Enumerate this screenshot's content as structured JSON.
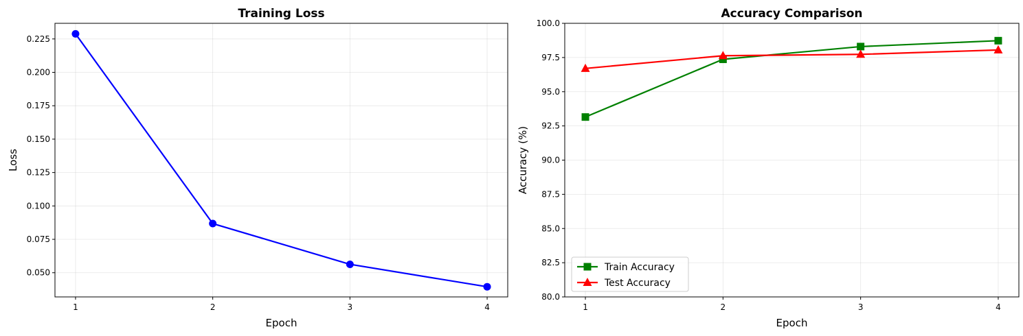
{
  "chart_data": [
    {
      "type": "line",
      "title": "Training Loss",
      "xlabel": "Epoch",
      "ylabel": "Loss",
      "x": [
        1,
        2,
        3,
        4
      ],
      "xticks": [
        "1",
        "2",
        "3",
        "4"
      ],
      "yticks": [
        "0.050",
        "0.075",
        "0.100",
        "0.125",
        "0.150",
        "0.175",
        "0.200",
        "0.225"
      ],
      "ytick_values": [
        0.05,
        0.075,
        0.1,
        0.125,
        0.15,
        0.175,
        0.2,
        0.225
      ],
      "ylim": [
        0.0319,
        0.2367
      ],
      "xlim": [
        0.85,
        4.15
      ],
      "grid": true,
      "series": [
        {
          "values": [
            0.2288,
            0.0868,
            0.0563,
            0.0395
          ],
          "color": "#0000ff",
          "marker": "circle"
        }
      ]
    },
    {
      "type": "line",
      "title": "Accuracy Comparison",
      "xlabel": "Epoch",
      "ylabel": "Accuracy (%)",
      "x": [
        1,
        2,
        3,
        4
      ],
      "xticks": [
        "1",
        "2",
        "3",
        "4"
      ],
      "yticks": [
        "80.0",
        "82.5",
        "85.0",
        "87.5",
        "90.0",
        "92.5",
        "95.0",
        "97.5",
        "100.0"
      ],
      "ytick_values": [
        80,
        82.5,
        85,
        87.5,
        90,
        92.5,
        95,
        97.5,
        100
      ],
      "ylim": [
        80,
        100
      ],
      "xlim": [
        0.85,
        4.15
      ],
      "grid": true,
      "legend": "lower-left",
      "series": [
        {
          "name": "Train Accuracy",
          "values": [
            93.15,
            97.37,
            98.3,
            98.73
          ],
          "color": "#008000",
          "marker": "square"
        },
        {
          "name": "Test Accuracy",
          "values": [
            96.7,
            97.63,
            97.73,
            98.05
          ],
          "color": "#ff0000",
          "marker": "triangle"
        }
      ]
    }
  ]
}
